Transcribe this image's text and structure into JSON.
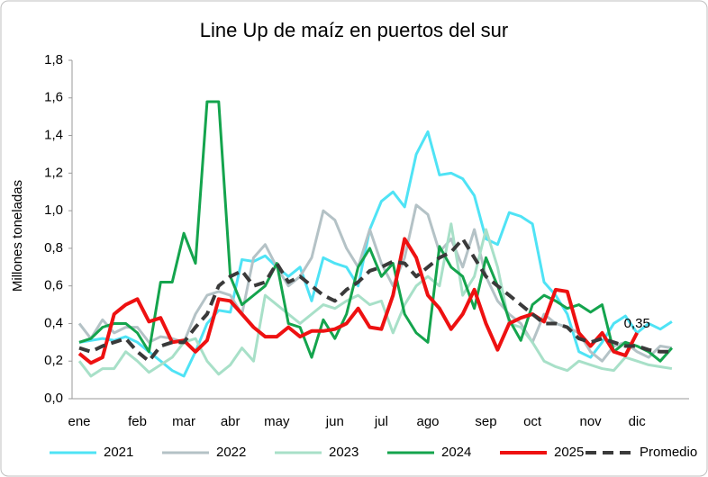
{
  "chart_data": {
    "type": "line",
    "title": "Line Up de maíz en puertos del sur",
    "y_label": "Millones toneladas",
    "categories": [
      "ene",
      null,
      null,
      null,
      null,
      "feb",
      null,
      null,
      null,
      "mar",
      null,
      null,
      null,
      "abr",
      null,
      null,
      null,
      "may",
      null,
      null,
      null,
      null,
      "jun",
      null,
      null,
      null,
      "jul",
      null,
      null,
      null,
      "ago",
      null,
      null,
      null,
      null,
      "sep",
      null,
      null,
      null,
      "oct",
      null,
      null,
      null,
      null,
      "nov",
      null,
      null,
      null,
      "dic",
      null,
      null,
      null
    ],
    "ylim": [
      0,
      1.8
    ],
    "yticks": [
      {
        "value": 0,
        "label": "0,0"
      },
      {
        "value": 0.2,
        "label": "0,2"
      },
      {
        "value": 0.4,
        "label": "0,4"
      },
      {
        "value": 0.6,
        "label": "0,6"
      },
      {
        "value": 0.8,
        "label": "0,8"
      },
      {
        "value": 1.0,
        "label": "1,0"
      },
      {
        "value": 1.2,
        "label": "1,2"
      },
      {
        "value": 1.4,
        "label": "1,4"
      },
      {
        "value": 1.6,
        "label": "1,6"
      },
      {
        "value": 1.8,
        "label": "1,8"
      }
    ],
    "annotation": {
      "text": "0,35",
      "value": 0.35
    },
    "series": [
      {
        "name": "2021",
        "color": "#4fe3f5",
        "width": 3,
        "values": [
          0.3,
          0.31,
          0.32,
          0.31,
          0.33,
          0.3,
          0.25,
          0.2,
          0.15,
          0.12,
          0.25,
          0.4,
          0.47,
          0.46,
          0.74,
          0.73,
          0.76,
          0.7,
          0.65,
          0.7,
          0.52,
          0.75,
          0.72,
          0.7,
          0.6,
          0.9,
          1.05,
          1.1,
          1.02,
          1.3,
          1.42,
          1.19,
          1.2,
          1.17,
          1.08,
          0.85,
          0.82,
          0.99,
          0.97,
          0.93,
          0.62,
          0.55,
          0.45,
          0.25,
          0.22,
          0.3,
          0.4,
          0.44,
          0.35,
          0.4,
          0.37,
          0.41
        ]
      },
      {
        "name": "2022",
        "color": "#b4c2c6",
        "width": 3,
        "values": [
          0.4,
          0.32,
          0.42,
          0.35,
          0.38,
          0.38,
          0.3,
          0.33,
          0.32,
          0.3,
          0.45,
          0.55,
          0.57,
          0.55,
          0.45,
          0.75,
          0.82,
          0.7,
          0.6,
          0.65,
          0.75,
          1.0,
          0.95,
          0.8,
          0.7,
          0.9,
          0.72,
          0.6,
          0.75,
          1.03,
          0.98,
          0.78,
          0.85,
          0.7,
          0.9,
          0.65,
          0.52,
          0.45,
          0.4,
          0.3,
          0.45,
          0.4,
          0.38,
          0.35,
          0.25,
          0.2,
          0.28,
          0.3,
          0.25,
          0.22,
          0.28,
          0.27
        ]
      },
      {
        "name": "2023",
        "color": "#a8e0c8",
        "width": 3,
        "values": [
          0.2,
          0.12,
          0.16,
          0.16,
          0.25,
          0.2,
          0.14,
          0.18,
          0.22,
          0.3,
          0.32,
          0.2,
          0.13,
          0.18,
          0.27,
          0.2,
          0.55,
          0.5,
          0.45,
          0.4,
          0.45,
          0.5,
          0.48,
          0.52,
          0.55,
          0.5,
          0.52,
          0.35,
          0.5,
          0.6,
          0.65,
          0.6,
          0.93,
          0.55,
          0.65,
          0.9,
          0.7,
          0.4,
          0.38,
          0.3,
          0.2,
          0.17,
          0.15,
          0.2,
          0.18,
          0.16,
          0.15,
          0.22,
          0.2,
          0.18,
          0.17,
          0.16
        ]
      },
      {
        "name": "2024",
        "color": "#14a44d",
        "width": 3,
        "values": [
          0.3,
          0.32,
          0.38,
          0.4,
          0.4,
          0.35,
          0.25,
          0.62,
          0.62,
          0.88,
          0.72,
          1.58,
          1.58,
          0.65,
          0.5,
          0.55,
          0.6,
          0.72,
          0.4,
          0.38,
          0.22,
          0.42,
          0.32,
          0.45,
          0.7,
          0.8,
          0.65,
          0.72,
          0.45,
          0.35,
          0.3,
          0.81,
          0.7,
          0.65,
          0.48,
          0.75,
          0.6,
          0.42,
          0.31,
          0.5,
          0.55,
          0.52,
          0.48,
          0.5,
          0.46,
          0.5,
          0.25,
          0.3,
          0.28,
          0.25,
          0.2,
          0.27
        ]
      },
      {
        "name": "2025",
        "color": "#ee1111",
        "width": 4,
        "values": [
          0.24,
          0.19,
          0.22,
          0.45,
          0.5,
          0.53,
          0.41,
          0.43,
          0.3,
          0.31,
          0.25,
          0.31,
          0.53,
          0.52,
          0.45,
          0.38,
          0.33,
          0.33,
          0.38,
          0.33,
          0.36,
          0.36,
          0.37,
          0.4,
          0.48,
          0.38,
          0.37,
          0.55,
          0.85,
          0.75,
          0.55,
          0.48,
          0.37,
          0.45,
          0.58,
          0.4,
          0.26,
          0.4,
          0.43,
          0.45,
          0.41,
          0.58,
          0.57,
          0.35,
          0.28,
          0.35,
          0.25,
          0.23,
          0.35,
          null,
          null,
          null
        ]
      },
      {
        "name": "Promedio",
        "color": "#3a3a3a",
        "width": 4,
        "dashed": true,
        "values": [
          0.27,
          0.25,
          0.28,
          0.3,
          0.32,
          0.25,
          0.2,
          0.28,
          0.3,
          0.3,
          0.38,
          0.45,
          0.6,
          0.65,
          0.68,
          0.6,
          0.62,
          0.72,
          0.62,
          0.65,
          0.6,
          0.55,
          0.52,
          0.58,
          0.62,
          0.68,
          0.7,
          0.73,
          0.72,
          0.65,
          0.7,
          0.75,
          0.78,
          0.85,
          0.75,
          0.65,
          0.6,
          0.55,
          0.5,
          0.45,
          0.4,
          0.4,
          0.38,
          0.32,
          0.3,
          0.32,
          0.3,
          0.28,
          0.28,
          0.26,
          0.25,
          0.25
        ]
      }
    ]
  }
}
